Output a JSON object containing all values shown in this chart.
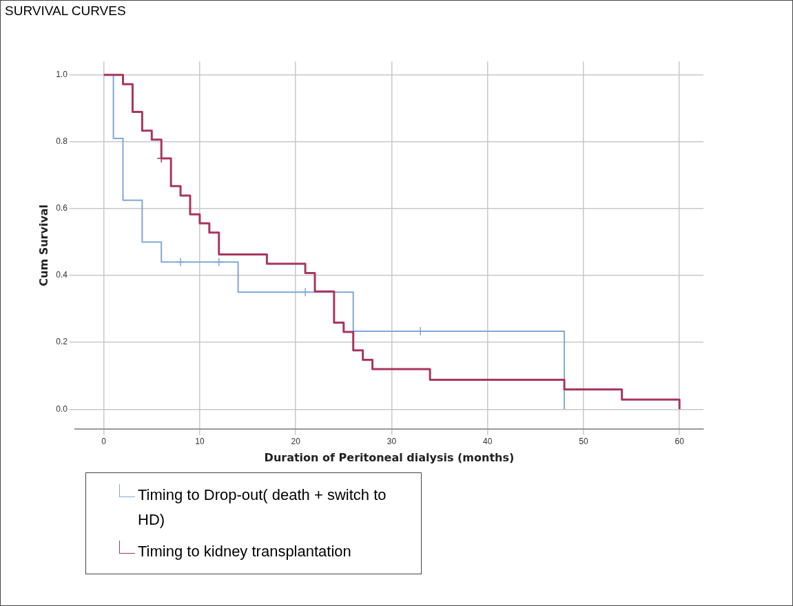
{
  "chart_data": {
    "type": "step",
    "title": "SURVIVAL CURVES",
    "xlabel": "Duration of Peritoneal dialysis (months)",
    "ylabel": "Cum Survival",
    "xlim": [
      -3,
      62.5
    ],
    "xticks": [
      0,
      10,
      20,
      30,
      40,
      50,
      60
    ],
    "ylim": [
      -0.06,
      1.04
    ],
    "yticks": [
      {
        "value": 0,
        "label": "0.0"
      },
      {
        "value": 0.2,
        "label": "0.2"
      },
      {
        "value": 0.4,
        "label": "0.4"
      },
      {
        "value": 0.6,
        "label": "0.6"
      },
      {
        "value": 0.8,
        "label": "0.8"
      },
      {
        "value": 1,
        "label": "1.0"
      }
    ],
    "grid": true,
    "legend": "bottom left",
    "marker": "none",
    "line_style": "solid",
    "series": [
      {
        "name": "Timing to Drop-out( death + switch to HD)",
        "color": "#7fa7d6",
        "x": [
          0,
          1,
          2,
          4,
          6,
          14,
          26,
          48
        ],
        "values": [
          1,
          0.81,
          0.625,
          0.5,
          0.44,
          0.35,
          0.233,
          0
        ]
      },
      {
        "name": "Timing to kidney transplantation",
        "color": "#a8365a",
        "x": [
          0,
          2,
          3,
          4,
          5,
          6,
          7,
          8,
          9,
          10,
          11,
          12,
          17,
          21,
          22,
          24,
          25,
          26,
          27,
          28,
          34,
          48,
          54,
          60
        ],
        "values": [
          1,
          0.972,
          0.889,
          0.833,
          0.806,
          0.75,
          0.667,
          0.639,
          0.583,
          0.556,
          0.528,
          0.463,
          0.435,
          0.407,
          0.352,
          0.259,
          0.231,
          0.176,
          0.148,
          0.12,
          0.088,
          0.059,
          0.029,
          0
        ]
      },
      {
        "type": "scatter",
        "marker": "cross",
        "color": "#7fa7d6",
        "x": [
          8,
          12,
          21,
          33
        ],
        "values": [
          0.44,
          0.44,
          0.35,
          0.233
        ]
      },
      {
        "type": "scatter",
        "marker": "cross",
        "color": "#a8365a",
        "x": [
          6
        ],
        "values": [
          0.75
        ]
      }
    ]
  }
}
